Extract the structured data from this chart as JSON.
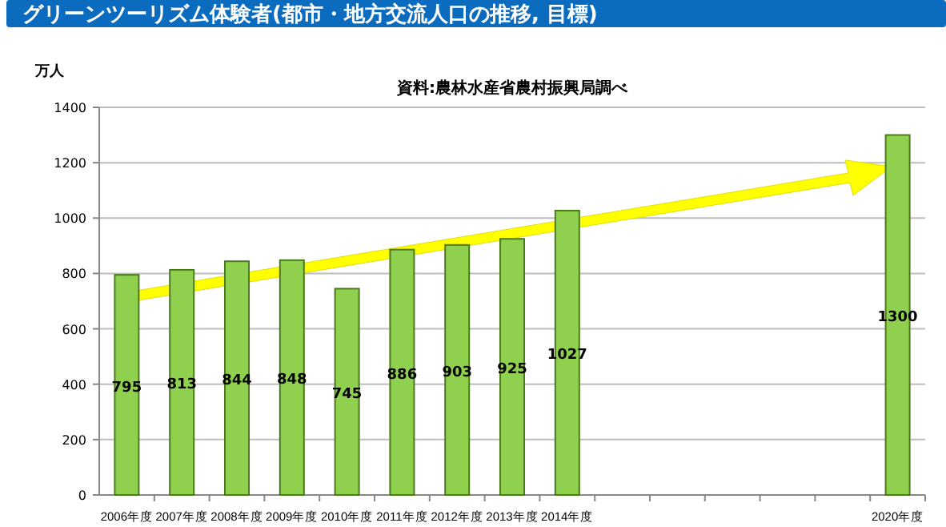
{
  "chart_data": {
    "type": "bar",
    "title": "グリーンツーリズム体験者(都市・地方交流人口の推移, 目標)",
    "subtitle": "資料:農林水産省農村振興局調べ",
    "ylabel": "万人",
    "categories": [
      "2006年度",
      "2007年度",
      "2008年度",
      "2009年度",
      "2010年度",
      "2011年度",
      "2012年度",
      "2013年度",
      "2014年度",
      null,
      null,
      null,
      null,
      null,
      "2020年度"
    ],
    "values": [
      795,
      813,
      844,
      848,
      745,
      886,
      903,
      925,
      1027,
      null,
      null,
      null,
      null,
      null,
      1300
    ],
    "color": "#8fd14f",
    "ylim": [
      0,
      1400
    ],
    "yticks": [
      0,
      200,
      400,
      600,
      800,
      1000,
      1200,
      1400
    ],
    "grid": "y",
    "data_labels": true
  }
}
